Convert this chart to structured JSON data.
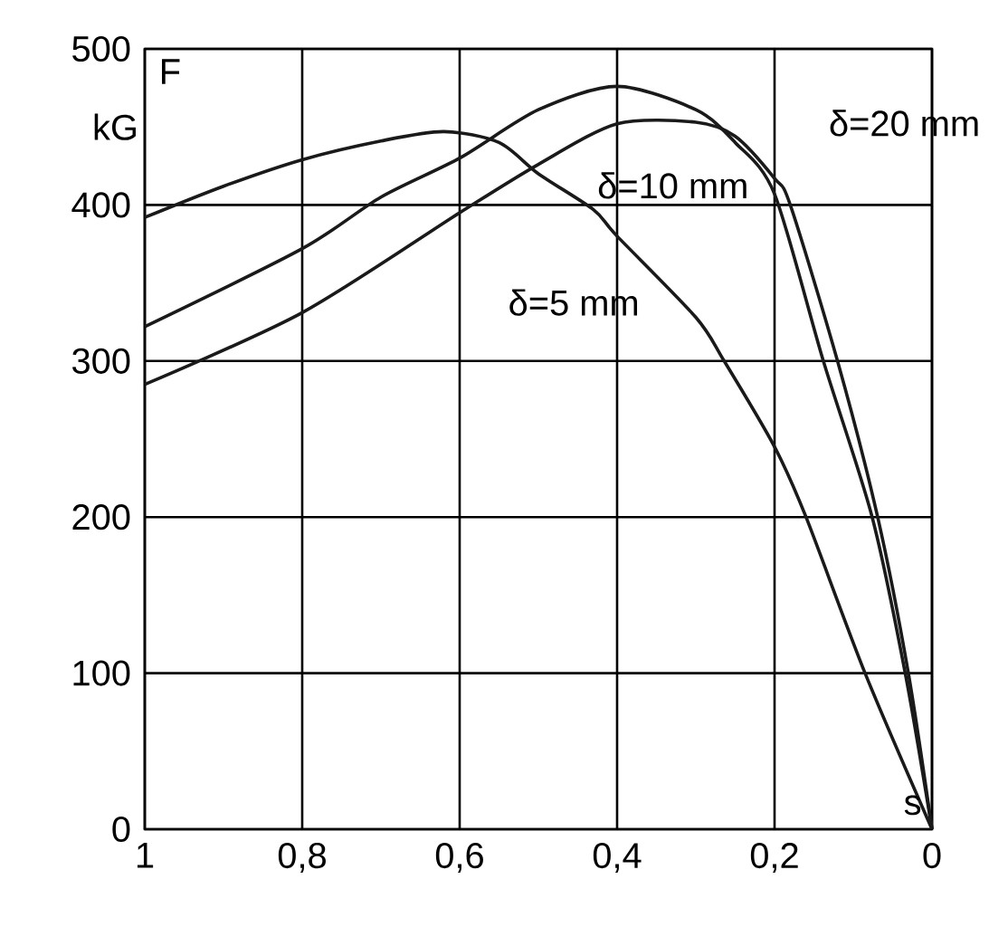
{
  "chart_data": {
    "type": "line",
    "ylabel": "F",
    "xlabel": "s",
    "series": [
      {
        "name": "δ=5 mm",
        "color": "#1a1a1a",
        "x": [
          1,
          0.9,
          0.8,
          0.7,
          0.62,
          0.55,
          0.5,
          0.43,
          0.4,
          0.3,
          0.264,
          0.2,
          0.16,
          0.085,
          0
        ],
        "values": [
          392,
          412,
          429,
          441,
          447,
          440,
          420,
          397,
          380,
          328,
          300,
          245,
          200,
          100,
          0
        ]
      },
      {
        "name": "δ=10 mm",
        "color": "#1a1a1a",
        "x": [
          1,
          0.8,
          0.7,
          0.6,
          0.5,
          0.4,
          0.3,
          0.25,
          0.2,
          0.138,
          0.076,
          0.034,
          0
        ],
        "values": [
          322,
          372,
          405,
          430,
          461,
          476,
          461,
          440,
          407,
          300,
          200,
          100,
          0
        ]
      },
      {
        "name": "δ=20 mm",
        "color": "#1a1a1a",
        "x": [
          1,
          0.8,
          0.6,
          0.5,
          0.4,
          0.3,
          0.25,
          0.2,
          0.18,
          0.12,
          0.069,
          0.03,
          0
        ],
        "values": [
          285,
          331,
          395,
          426,
          452,
          453,
          444,
          417,
          400,
          300,
          200,
          100,
          0
        ]
      }
    ],
    "xlim": [
      1,
      0
    ],
    "ylim": [
      0,
      500
    ],
    "xticks": [
      1,
      {
        "value": 0.8,
        "label": "0,8"
      },
      {
        "value": 0.6,
        "label": "0,6"
      },
      {
        "value": 0.4,
        "label": "0,4"
      },
      {
        "value": 0.2,
        "label": "0,2"
      },
      0
    ],
    "yticks": [
      0,
      100,
      200,
      300,
      400,
      500
    ],
    "grid": true,
    "marker": "none",
    "line_style": "solid",
    "annotations": [
      "kG"
    ]
  }
}
